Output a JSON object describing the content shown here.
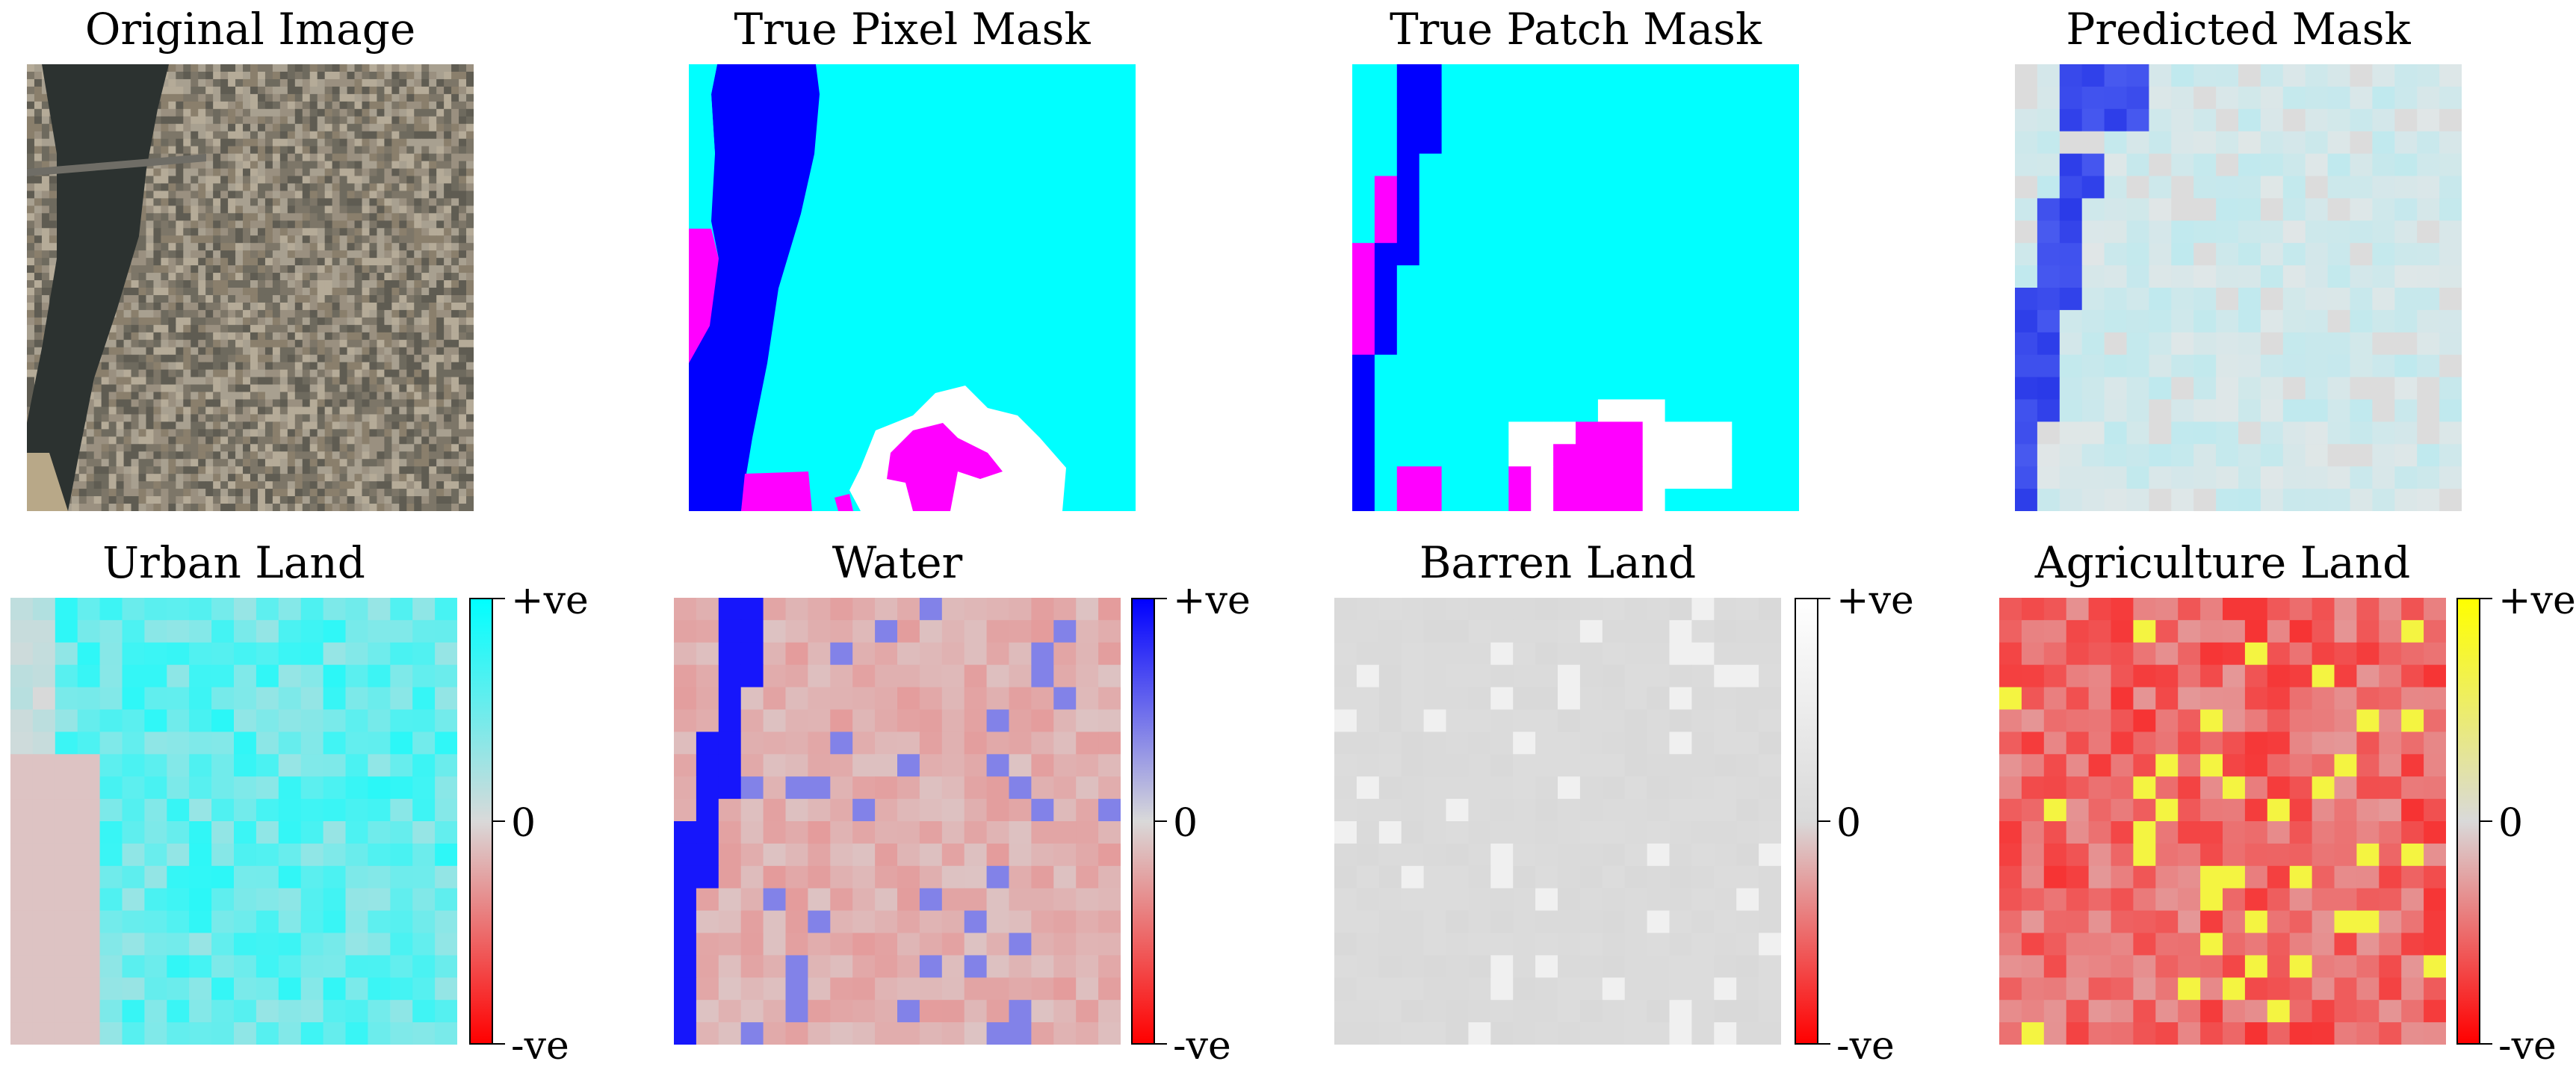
{
  "panels": [
    {
      "key": "original",
      "title": "Original Image"
    },
    {
      "key": "pixel_mask",
      "title": "True Pixel Mask"
    },
    {
      "key": "patch_mask",
      "title": "True Patch Mask"
    },
    {
      "key": "predicted",
      "title": "Predicted Mask"
    },
    {
      "key": "urban",
      "title": "Urban Land"
    },
    {
      "key": "water",
      "title": "Water"
    },
    {
      "key": "barren",
      "title": "Barren Land"
    },
    {
      "key": "agriculture",
      "title": "Agriculture Land"
    }
  ],
  "colorbar": {
    "top": "+ve",
    "mid": "0",
    "bottom": "-ve"
  },
  "colors": {
    "urban": "#00ffff",
    "water": "#0000ff",
    "barren": "#ffffff",
    "agriculture": "#ffff00",
    "rangeland": "#ff00ff",
    "forest": "#00ff00",
    "negative": "#ff0000",
    "neutral": "#d9d9d9"
  }
}
